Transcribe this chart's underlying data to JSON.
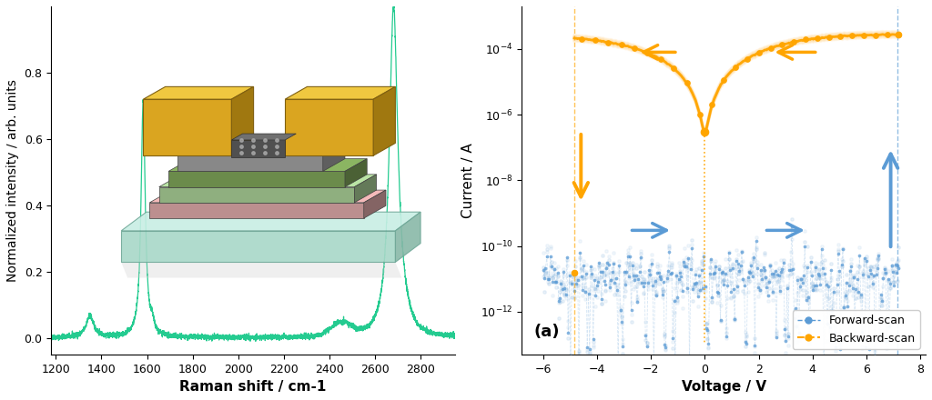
{
  "left_panel": {
    "xlim": [
      1180,
      2950
    ],
    "ylim": [
      -0.05,
      1.0
    ],
    "xticks": [
      1200,
      1400,
      1600,
      1800,
      2000,
      2200,
      2400,
      2600,
      2800
    ],
    "yticks": [
      0.0,
      0.2,
      0.4,
      0.6,
      0.8
    ],
    "xlabel": "Raman shift / cm-1",
    "ylabel": "Normalized intensity / arb. units",
    "line_color": "#18C98A",
    "noise_level": 0.004
  },
  "right_panel": {
    "xlim": [
      -6.8,
      8.2
    ],
    "ylim_log_min": -13.3,
    "ylim_log_max": -2.7,
    "xticks": [
      -6,
      -4,
      -2,
      0,
      2,
      4,
      6,
      8
    ],
    "xlabel": "Voltage / V",
    "ylabel": "Current / A",
    "forward_color": "#5B9BD5",
    "forward_color_dark": "#3A7AB5",
    "backward_color": "#FFA500",
    "backward_color_dark": "#E08000",
    "label_a": "(a)",
    "forward_label": "Forward-scan",
    "backward_label": "Backward-scan",
    "vline_set": 7.15,
    "vline_reset": -4.85
  }
}
